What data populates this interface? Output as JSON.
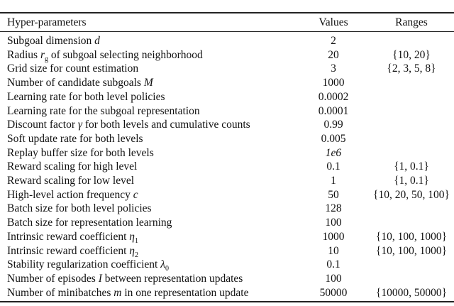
{
  "header": {
    "param": "Hyper-parameters",
    "values": "Values",
    "ranges": "Ranges"
  },
  "rows": [
    {
      "label": [
        {
          "t": "Subgoal dimension "
        },
        {
          "m": "d"
        }
      ],
      "value": "2",
      "range": ""
    },
    {
      "label": [
        {
          "t": "Radius "
        },
        {
          "m": "r",
          "sub": "g"
        },
        {
          "t": " of subgoal selecting neighborhood"
        }
      ],
      "value": "20",
      "range": "{10, 20}"
    },
    {
      "label": [
        {
          "t": "Grid size for count estimation"
        }
      ],
      "value": "3",
      "range": "{2, 3, 5, 8}"
    },
    {
      "label": [
        {
          "t": "Number of candidate subgoals "
        },
        {
          "m": "M"
        }
      ],
      "value": "1000",
      "range": ""
    },
    {
      "label": [
        {
          "t": "Learning rate for both level policies"
        }
      ],
      "value": "0.0002",
      "range": ""
    },
    {
      "label": [
        {
          "t": "Learning rate for the subgoal representation"
        }
      ],
      "value": "0.0001",
      "range": ""
    },
    {
      "label": [
        {
          "t": "Discount factor "
        },
        {
          "m": "γ"
        },
        {
          "t": " for both levels and cumulative counts"
        }
      ],
      "value": "0.99",
      "range": ""
    },
    {
      "label": [
        {
          "t": "Soft update rate for both levels"
        }
      ],
      "value": "0.005",
      "range": ""
    },
    {
      "label": [
        {
          "t": "Replay buffer size for both levels"
        }
      ],
      "value": "1e6",
      "range": ""
    },
    {
      "label": [
        {
          "t": "Reward scaling for high level"
        }
      ],
      "value": "0.1",
      "range": "{1, 0.1}"
    },
    {
      "label": [
        {
          "t": "Reward scaling for low level"
        }
      ],
      "value": "1",
      "range": "{1, 0.1}"
    },
    {
      "label": [
        {
          "t": "High-level action frequency "
        },
        {
          "m": "c"
        }
      ],
      "value": "50",
      "range": "{10, 20, 50, 100}"
    },
    {
      "label": [
        {
          "t": "Batch size for both level policies"
        }
      ],
      "value": "128",
      "range": ""
    },
    {
      "label": [
        {
          "t": "Batch size for representation learning"
        }
      ],
      "value": "100",
      "range": ""
    },
    {
      "label": [
        {
          "t": "Intrinsic reward coefficient "
        },
        {
          "m": "η",
          "sub": "1"
        }
      ],
      "value": "1000",
      "range": "{10, 100, 1000}"
    },
    {
      "label": [
        {
          "t": "Intrinsic reward coefficient "
        },
        {
          "m": "η",
          "sub": "2"
        }
      ],
      "value": "10",
      "range": "{10, 100, 1000}"
    },
    {
      "label": [
        {
          "t": "Stability regularization coefficient "
        },
        {
          "m": "λ",
          "sub": "0"
        }
      ],
      "value": "0.1",
      "range": ""
    },
    {
      "label": [
        {
          "t": "Number of episodes "
        },
        {
          "m": "I"
        },
        {
          "t": " between representation updates"
        }
      ],
      "value": "100",
      "range": ""
    },
    {
      "label": [
        {
          "t": "Number of minibatches "
        },
        {
          "m": "m"
        },
        {
          "t": " in one representation update"
        }
      ],
      "value": "50000",
      "range": "{10000, 50000}"
    }
  ]
}
